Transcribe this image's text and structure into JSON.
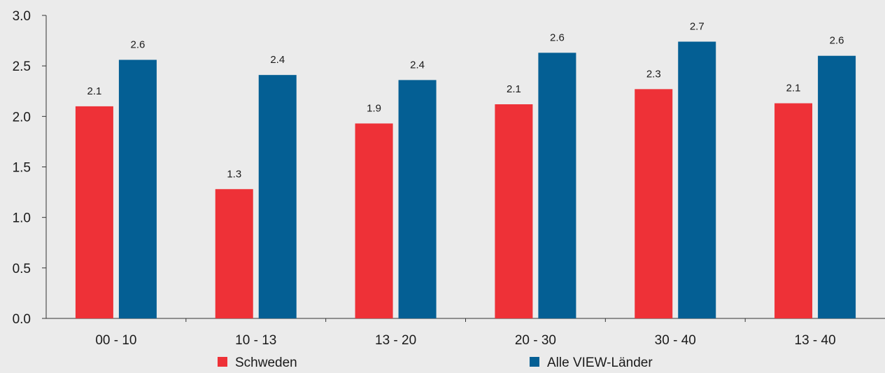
{
  "chart_data": {
    "type": "bar",
    "categories": [
      "00 - 10",
      "10 - 13",
      "13 - 20",
      "20 - 30",
      "30 - 40",
      "13 - 40"
    ],
    "series": [
      {
        "name": "Schweden",
        "color": "#ee3137",
        "values": [
          2.1,
          1.28,
          1.93,
          2.12,
          2.27,
          2.13
        ],
        "labels": [
          "2.1",
          "1.3",
          "1.9",
          "2.1",
          "2.3",
          "2.1"
        ]
      },
      {
        "name": "Alle VIEW-Länder",
        "color": "#045f94",
        "values": [
          2.56,
          2.41,
          2.36,
          2.63,
          2.74,
          2.6
        ],
        "labels": [
          "2.6",
          "2.4",
          "2.4",
          "2.6",
          "2.7",
          "2.6"
        ]
      }
    ],
    "yticks": [
      "0.0",
      "0.5",
      "1.0",
      "1.5",
      "2.0",
      "2.5",
      "3.0"
    ],
    "ylim": [
      0,
      3
    ],
    "grid": false,
    "legend_position": "bottom",
    "background": "#ebebeb"
  }
}
